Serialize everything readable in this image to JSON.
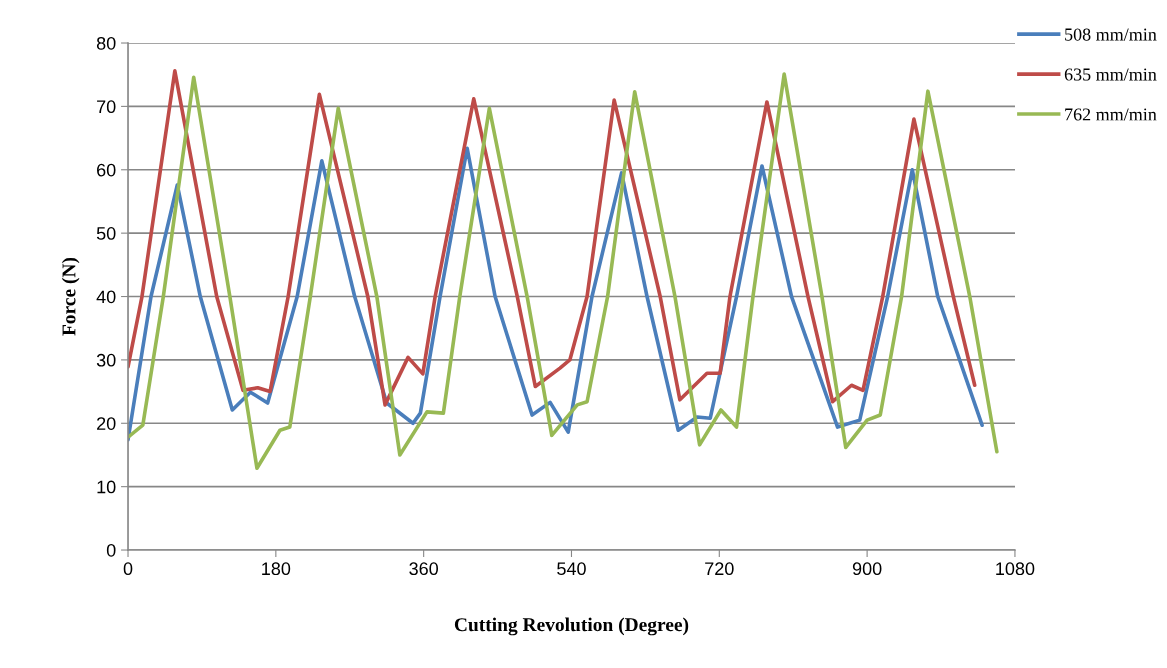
{
  "chart_data": {
    "type": "line",
    "xlabel": "Cutting Revolution (Degree)",
    "ylabel": "Force (N)",
    "xlim": [
      0,
      1080
    ],
    "xticks": [
      0,
      180,
      360,
      540,
      720,
      900,
      1080
    ],
    "ylim": [
      0,
      80
    ],
    "yticks": [
      0,
      10,
      20,
      30,
      40,
      50,
      60,
      70,
      80
    ],
    "grid": "y",
    "legend": "top right",
    "marker": "none",
    "line_style": "solid",
    "series": [
      {
        "name": "508 mm/min",
        "color": "#4a7ebb",
        "x": [
          0,
          28,
          60,
          88,
          127,
          149,
          170,
          206,
          236,
          276,
          315,
          347,
          356,
          380,
          413,
          447,
          492,
          514,
          536,
          565,
          601,
          632,
          670,
          693,
          709,
          741,
          772,
          808,
          864,
          891,
          925,
          955,
          986,
          1040
        ],
        "values": [
          17.4,
          40,
          57.6,
          40,
          22.1,
          24.9,
          23.2,
          40,
          61.4,
          40,
          23.2,
          20.0,
          21.6,
          40,
          63.4,
          40,
          21.3,
          23.3,
          18.6,
          40,
          59.5,
          40,
          18.9,
          21.0,
          20.8,
          40,
          60.6,
          40,
          19.4,
          20.5,
          40,
          60.0,
          40,
          19.7
        ]
      },
      {
        "name": "635 mm/min",
        "color": "#be4b48",
        "x": [
          0,
          17,
          57,
          108,
          140,
          158,
          173,
          195,
          233,
          292,
          313,
          341,
          359,
          374,
          421,
          474,
          496,
          526,
          538,
          559,
          592,
          648,
          672,
          705,
          721,
          733,
          778,
          828,
          858,
          881,
          895,
          919,
          957,
          1005,
          1031
        ],
        "values": [
          28.9,
          40,
          75.6,
          40,
          25.2,
          25.6,
          25.0,
          40,
          71.9,
          40,
          22.9,
          30.4,
          27.8,
          40,
          71.2,
          40,
          25.8,
          28.7,
          30.0,
          40,
          71.0,
          40,
          23.7,
          27.9,
          27.9,
          40,
          70.7,
          40,
          23.4,
          26.0,
          25.2,
          40,
          68.0,
          40,
          26.0
        ]
      },
      {
        "name": "762 mm/min",
        "color": "#98b954",
        "x": [
          0,
          18,
          43,
          80,
          124,
          157,
          185,
          197,
          222,
          256,
          303,
          331,
          364,
          384,
          404,
          440,
          486,
          516,
          547,
          559,
          584,
          617,
          666,
          696,
          722,
          741,
          761,
          799,
          845,
          874,
          900,
          916,
          942,
          974,
          1025,
          1058
        ],
        "values": [
          17.8,
          19.7,
          40,
          74.6,
          40,
          12.9,
          18.9,
          19.4,
          40,
          69.7,
          40,
          15.0,
          21.8,
          21.6,
          40,
          69.7,
          40,
          18.1,
          22.9,
          23.4,
          40,
          72.3,
          40,
          16.6,
          22.1,
          19.4,
          40,
          75.1,
          40,
          16.2,
          20.5,
          21.3,
          40,
          72.4,
          40,
          15.5
        ]
      }
    ]
  }
}
